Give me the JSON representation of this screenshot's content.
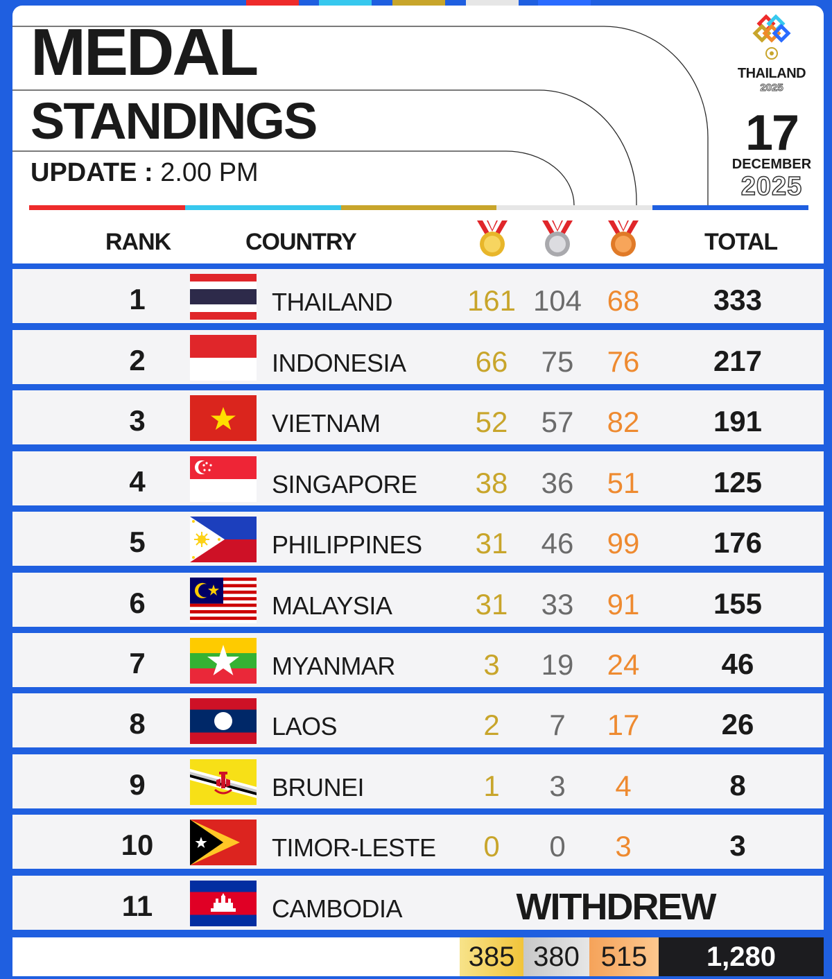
{
  "header": {
    "title_line1": "MEDAL",
    "title_line2": "STANDINGS",
    "update_label": "UPDATE :",
    "update_time": "2.00 PM"
  },
  "logo": {
    "text": "THAILAND",
    "year": "2025"
  },
  "date": {
    "day": "17",
    "month": "DECEMBER",
    "year": "2025"
  },
  "colors": {
    "red": "#ee2b2b",
    "cyan": "#37c8ee",
    "gold": "#c8a52b",
    "silver": "#e6e6e6",
    "blue": "#1f5fe0"
  },
  "columns": {
    "rank": "RANK",
    "country": "COUNTRY",
    "gold_icon": "gold-medal-icon",
    "silver_icon": "silver-medal-icon",
    "bronze_icon": "bronze-medal-icon",
    "total": "TOTAL"
  },
  "rows": [
    {
      "rank": "1",
      "country": "THAILAND",
      "flag": "thailand-flag",
      "gold": "161",
      "silver": "104",
      "bronze": "68",
      "total": "333"
    },
    {
      "rank": "2",
      "country": "INDONESIA",
      "flag": "indonesia-flag",
      "gold": "66",
      "silver": "75",
      "bronze": "76",
      "total": "217"
    },
    {
      "rank": "3",
      "country": "VIETNAM",
      "flag": "vietnam-flag",
      "gold": "52",
      "silver": "57",
      "bronze": "82",
      "total": "191"
    },
    {
      "rank": "4",
      "country": "SINGAPORE",
      "flag": "singapore-flag",
      "gold": "38",
      "silver": "36",
      "bronze": "51",
      "total": "125"
    },
    {
      "rank": "5",
      "country": "PHILIPPINES",
      "flag": "philippines-flag",
      "gold": "31",
      "silver": "46",
      "bronze": "99",
      "total": "176"
    },
    {
      "rank": "6",
      "country": "MALAYSIA",
      "flag": "malaysia-flag",
      "gold": "31",
      "silver": "33",
      "bronze": "91",
      "total": "155"
    },
    {
      "rank": "7",
      "country": "MYANMAR",
      "flag": "myanmar-flag",
      "gold": "3",
      "silver": "19",
      "bronze": "24",
      "total": "46"
    },
    {
      "rank": "8",
      "country": "LAOS",
      "flag": "laos-flag",
      "gold": "2",
      "silver": "7",
      "bronze": "17",
      "total": "26"
    },
    {
      "rank": "9",
      "country": "BRUNEI",
      "flag": "brunei-flag",
      "gold": "1",
      "silver": "3",
      "bronze": "4",
      "total": "8"
    },
    {
      "rank": "10",
      "country": "TIMOR-LESTE",
      "flag": "timor-leste-flag",
      "gold": "0",
      "silver": "0",
      "bronze": "3",
      "total": "3"
    },
    {
      "rank": "11",
      "country": "CAMBODIA",
      "flag": "cambodia-flag",
      "status": "WITHDREW"
    }
  ],
  "totals": {
    "gold": "385",
    "silver": "380",
    "bronze": "515",
    "total": "1,280"
  }
}
